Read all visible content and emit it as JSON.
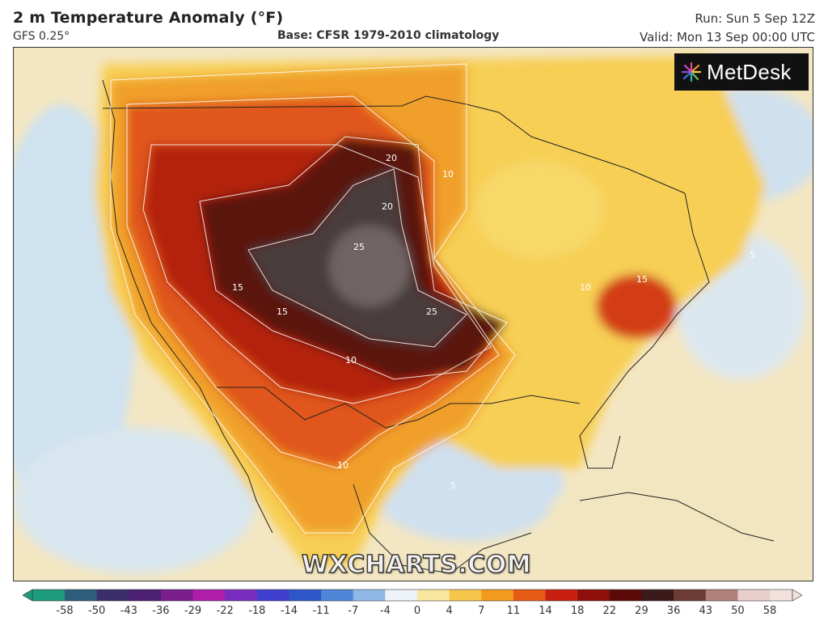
{
  "header": {
    "title": "2 m Temperature Anomaly (°F)",
    "model": "GFS 0.25°",
    "base": "Base: CFSR 1979-2010 climatology",
    "run": "Run: Sun 5 Sep 12Z",
    "valid": "Valid: Mon 13 Sep 00:00 UTC"
  },
  "logo": {
    "text": "MetDesk",
    "icon": "starburst-icon"
  },
  "watermark": "WXCHARTS.COM",
  "scale": {
    "labels": [
      "-58",
      "-50",
      "-43",
      "-36",
      "-29",
      "-22",
      "-18",
      "-14",
      "-11",
      "-7",
      "-4",
      "0",
      "4",
      "7",
      "11",
      "14",
      "18",
      "22",
      "29",
      "36",
      "43",
      "50",
      "58"
    ],
    "colors": [
      "#1d9b7d",
      "#2c5d7a",
      "#3a2f6b",
      "#4b1f72",
      "#7a1e8c",
      "#b01da8",
      "#7a2cc0",
      "#3f3fd0",
      "#2e58c9",
      "#4f86d8",
      "#8fb8e6",
      "#eef3f8",
      "#f9e7a0",
      "#f6c64a",
      "#f29a1e",
      "#e65a14",
      "#c81f10",
      "#8e0f0a",
      "#5c0a08",
      "#3a1a1a",
      "#6d3b35",
      "#b0807a",
      "#e8cfcb",
      "#f2e2de"
    ],
    "colors_note": ""
  },
  "map": {
    "contour_labels": [
      "5",
      "10",
      "15",
      "20",
      "25"
    ],
    "colors": {
      "ocean_cool": "#cfe2f0",
      "ocean_pale": "#f6edd0",
      "warm_light": "#f7d35a",
      "warm": "#f2a12a",
      "hot": "#e0531a",
      "very_hot": "#b8200f",
      "extreme": "#5a1410",
      "core": "#4a3c3c",
      "core_inner": "#6f6464"
    }
  }
}
